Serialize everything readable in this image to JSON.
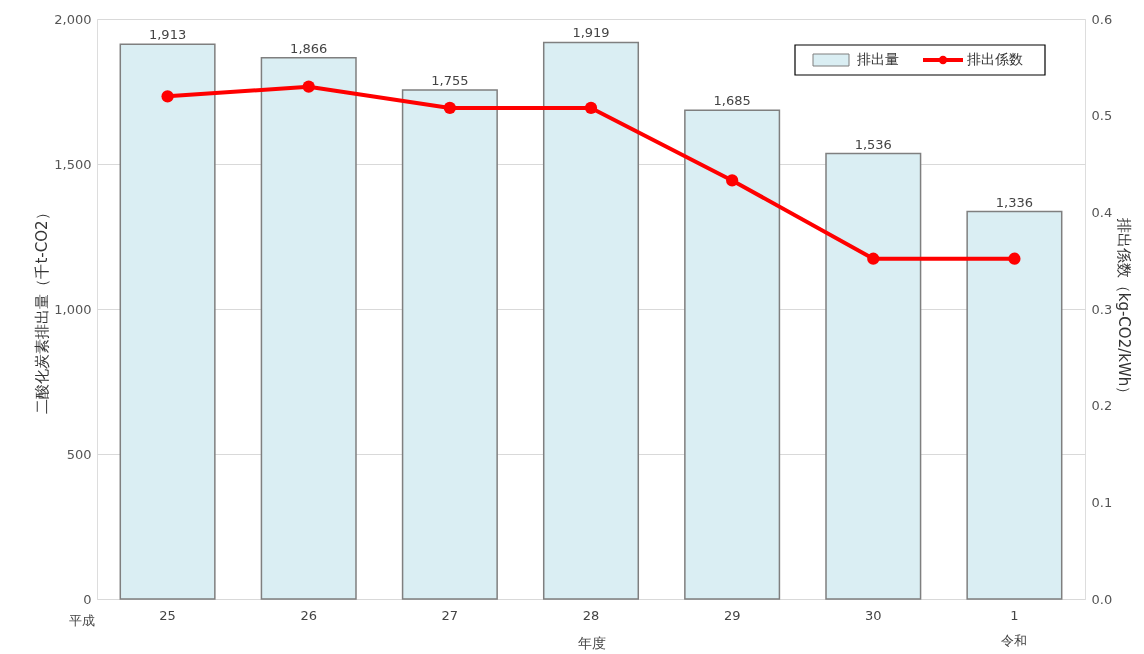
{
  "chart_data": {
    "type": "bar",
    "xlabel": "年度",
    "ylabel": "二酸化炭素排出量（千t-CO2）",
    "y2label": "排出係数（kg-CO2/kWh）",
    "categories": [
      "25",
      "26",
      "27",
      "28",
      "29",
      "30",
      "1"
    ],
    "series": [
      {
        "name": "排出量",
        "color": "#daeef3",
        "values": [
          1913,
          1866,
          1755,
          1919,
          1685,
          1536,
          1336
        ],
        "value_labels": [
          "1,913",
          "1,866",
          "1,755",
          "1,919",
          "1,685",
          "1,536",
          "1,336"
        ]
      },
      {
        "name": "排出係数",
        "type": "line",
        "axis": "y2",
        "color": "#ff0000",
        "marker": "circle",
        "values": [
          0.52,
          0.53,
          0.508,
          0.508,
          0.433,
          0.352,
          0.352
        ]
      }
    ],
    "ylim": [
      0,
      2000
    ],
    "yticks": [
      {
        "value": 0,
        "label": "0"
      },
      {
        "value": 500,
        "label": "500"
      },
      {
        "value": 1000,
        "label": "1,000"
      },
      {
        "value": 1500,
        "label": "1,500"
      },
      {
        "value": 2000,
        "label": "2,000"
      }
    ],
    "y2lim": [
      0,
      0.6
    ],
    "y2ticks": [
      {
        "value": 0,
        "label": "0.0"
      },
      {
        "value": 0.1,
        "label": "0.1"
      },
      {
        "value": 0.2,
        "label": "0.2"
      },
      {
        "value": 0.3,
        "label": "0.3"
      },
      {
        "value": 0.4,
        "label": "0.4"
      },
      {
        "value": 0.5,
        "label": "0.5"
      },
      {
        "value": 0.6,
        "label": "0.6"
      }
    ],
    "grid": "y",
    "legend": "top right",
    "annotations": [
      "平成",
      "令和"
    ]
  }
}
